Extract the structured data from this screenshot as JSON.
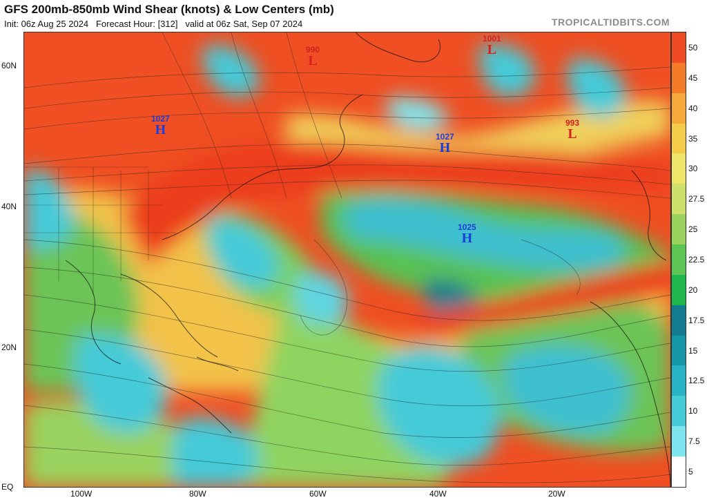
{
  "header": {
    "title": "GFS 200mb-850mb Wind Shear (knots) & Low Centers (mb)",
    "subtitle": "Init: 06z Aug 25 2024   Forecast Hour: [312]   valid at 06z Sat, Sep 07 2024",
    "source": "TROPICALTIDBITS.COM"
  },
  "axes": {
    "lat_labels": [
      "60N",
      "40N",
      "20N",
      "EQ"
    ],
    "lon_labels": [
      "100W",
      "80W",
      "60W",
      "40W",
      "20W"
    ]
  },
  "colorbar": {
    "labels": [
      "50",
      "45",
      "40",
      "35",
      "30",
      "27.5",
      "25",
      "22.5",
      "20",
      "17.5",
      "15",
      "12.5",
      "10",
      "7.5",
      "5"
    ],
    "colors": [
      "#f04a22",
      "#f47c28",
      "#f7a83a",
      "#f4cc4a",
      "#eee46a",
      "#cfe06a",
      "#9ad35e",
      "#5dc553",
      "#1fb64d",
      "#137d8f",
      "#1596a6",
      "#27b3c4",
      "#45cad8",
      "#7fe5ee",
      "#ffffff"
    ]
  },
  "pressure_systems": [
    {
      "type": "H",
      "pressure": "1027"
    },
    {
      "type": "L",
      "pressure": "990"
    },
    {
      "type": "L",
      "pressure": "1001"
    },
    {
      "type": "H",
      "pressure": "1027"
    },
    {
      "type": "L",
      "pressure": "993"
    },
    {
      "type": "H",
      "pressure": "1025"
    }
  ]
}
